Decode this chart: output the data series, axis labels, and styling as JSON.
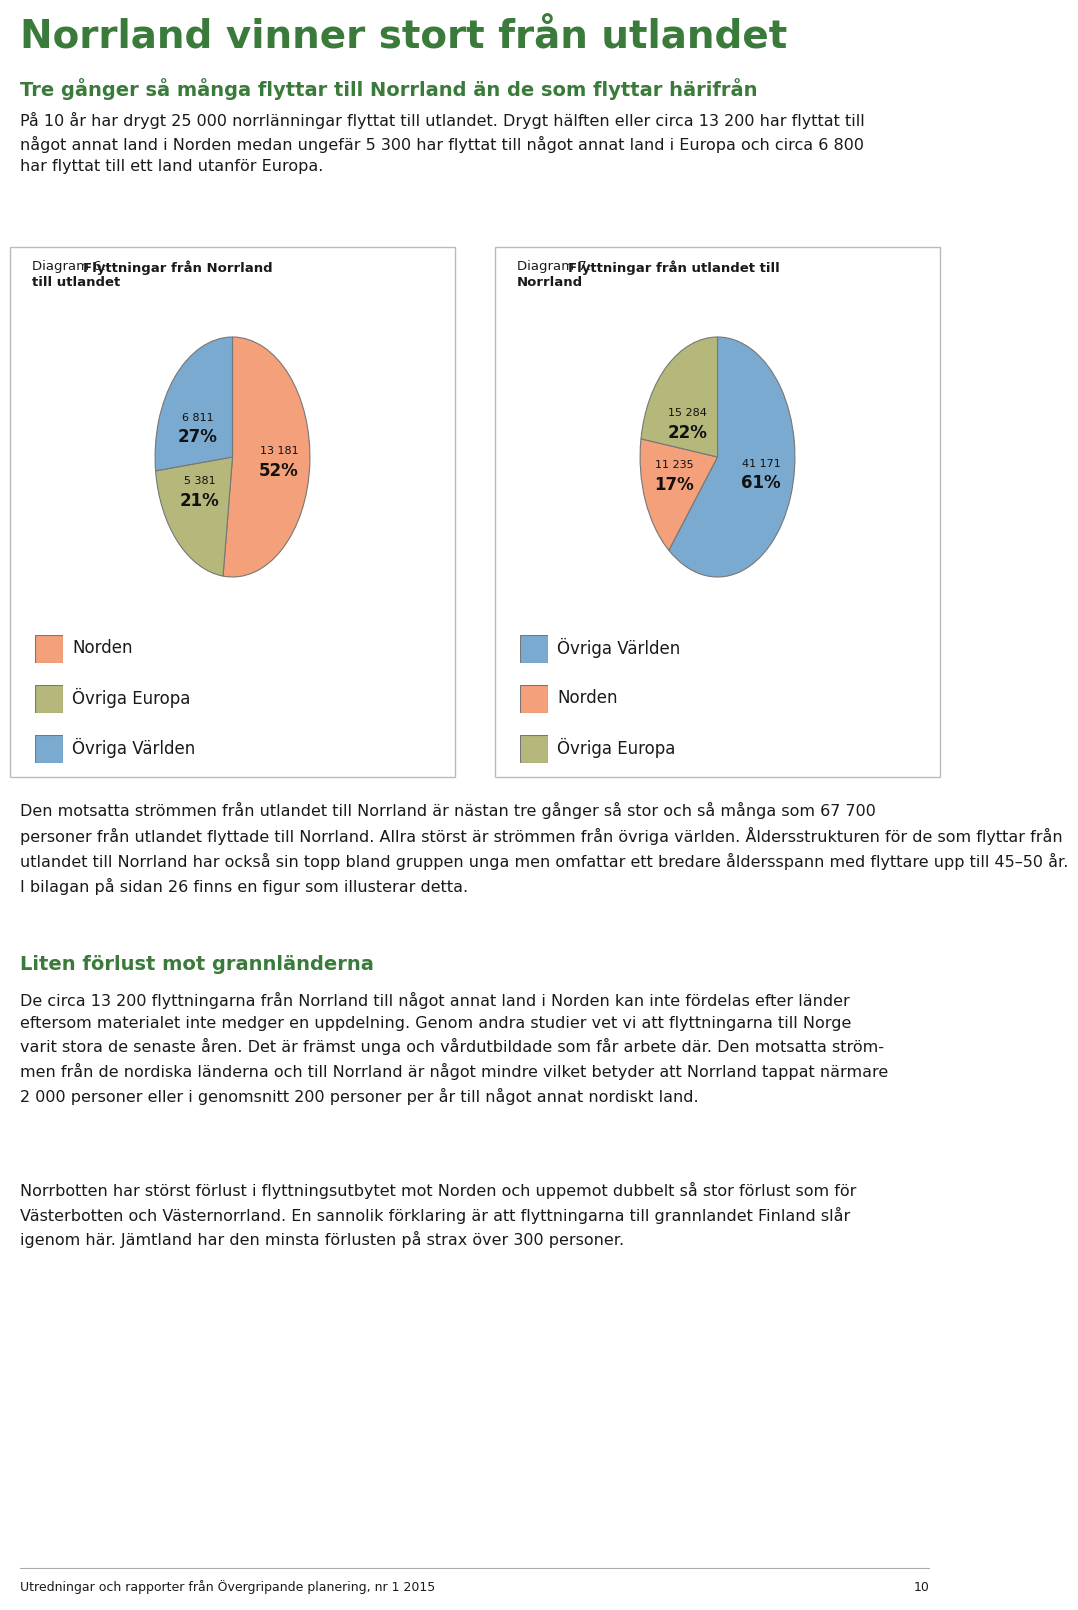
{
  "title": "Norrland vinner stort från utlandet",
  "subtitle": "Tre gånger så många flyttar till Norrland än de som flyttar härifrån",
  "intro_text": "På 10 år har drygt 25 000 norrlänningar flyttat till utlandet. Drygt hälften eller circa 13 200 har flyttat till\nnågot annat land i Norden medan ungefär 5 300 har flyttat till något annat land i Europa och circa 6 800\nhar flyttat till ett land utanför Europa.",
  "diagram6_title_plain": "Diagram 6: ",
  "diagram6_title_bold": "Flyttningar från Norrland\ntill utlandet",
  "diagram7_title_plain": "Diagram 7: ",
  "diagram7_title_bold": "Flyttningar från utlandet till\nNorrland",
  "diagram6_values": [
    13181,
    5381,
    6811
  ],
  "diagram6_labels": [
    "Norden",
    "Övriga Europa",
    "Övriga Världen"
  ],
  "diagram6_pcts": [
    "52%",
    "21%",
    "27%"
  ],
  "diagram6_nums": [
    "13 181",
    "5 381",
    "6 811"
  ],
  "diagram6_colors": [
    "#F4A07A",
    "#B5B87A",
    "#7AAAD0"
  ],
  "diagram7_values": [
    41171,
    11235,
    15284
  ],
  "diagram7_labels": [
    "Övriga Världen",
    "Norden",
    "Övriga Europa"
  ],
  "diagram7_pcts": [
    "61%",
    "17%",
    "22%"
  ],
  "diagram7_nums": [
    "41 171",
    "11 235",
    "15 284"
  ],
  "diagram7_colors": [
    "#7AAAD0",
    "#F4A07A",
    "#B5B87A"
  ],
  "body_text1": "Den motsatta strömmen från utlandet till Norrland är nästan tre gånger så stor och så många som 67 700\npersoner från utlandet flyttade till Norrland. Allra störst är strömmen från övriga världen. Åldersstrukturen för de som flyttar från\nutlandet till Norrland har också sin topp bland gruppen unga men omfattar ett bredare åldersspann med flyttare upp till 45–50 år.\nI bilagan på sidan 26 finns en figur som illusterar detta.",
  "body_subtitle2": "Liten förlust mot grannländerna",
  "body_text2": "De circa 13 200 flyttningarna från Norrland till något annat land i Norden kan inte fördelas efter länder\neftersom materialet inte medger en uppdelning. Genom andra studier vet vi att flyttningarna till Norge\nvarit stora de senaste åren. Det är främst unga och vårdutbildade som får arbete där. Den motsatta ström-\nmen från de nordiska länderna och till Norrland är något mindre vilket betyder att Norrland tappat närmare\n2 000 personer eller i genomsnitt 200 personer per år till något annat nordiskt land.",
  "body_text3": "Norrbotten har störst förlust i flyttningsutbytet mot Norden och uppemot dubbelt så stor förlust som för\nVästerbotten och Västernorrland. En sannolik förklaring är att flyttningarna till grannlandet Finland slår\nigenom här. Jämtland har den minsta förlusten på strax över 300 personer.",
  "footer_text": "Utredningar och rapporter från Övergripande planering, nr 1 2015",
  "footer_page": "10",
  "bg_color": "#FFFFFF",
  "title_color": "#3A7A3A",
  "subtitle_color": "#3A7A3A",
  "body_color": "#1a1a1a",
  "border_color": "#BBBBBB"
}
